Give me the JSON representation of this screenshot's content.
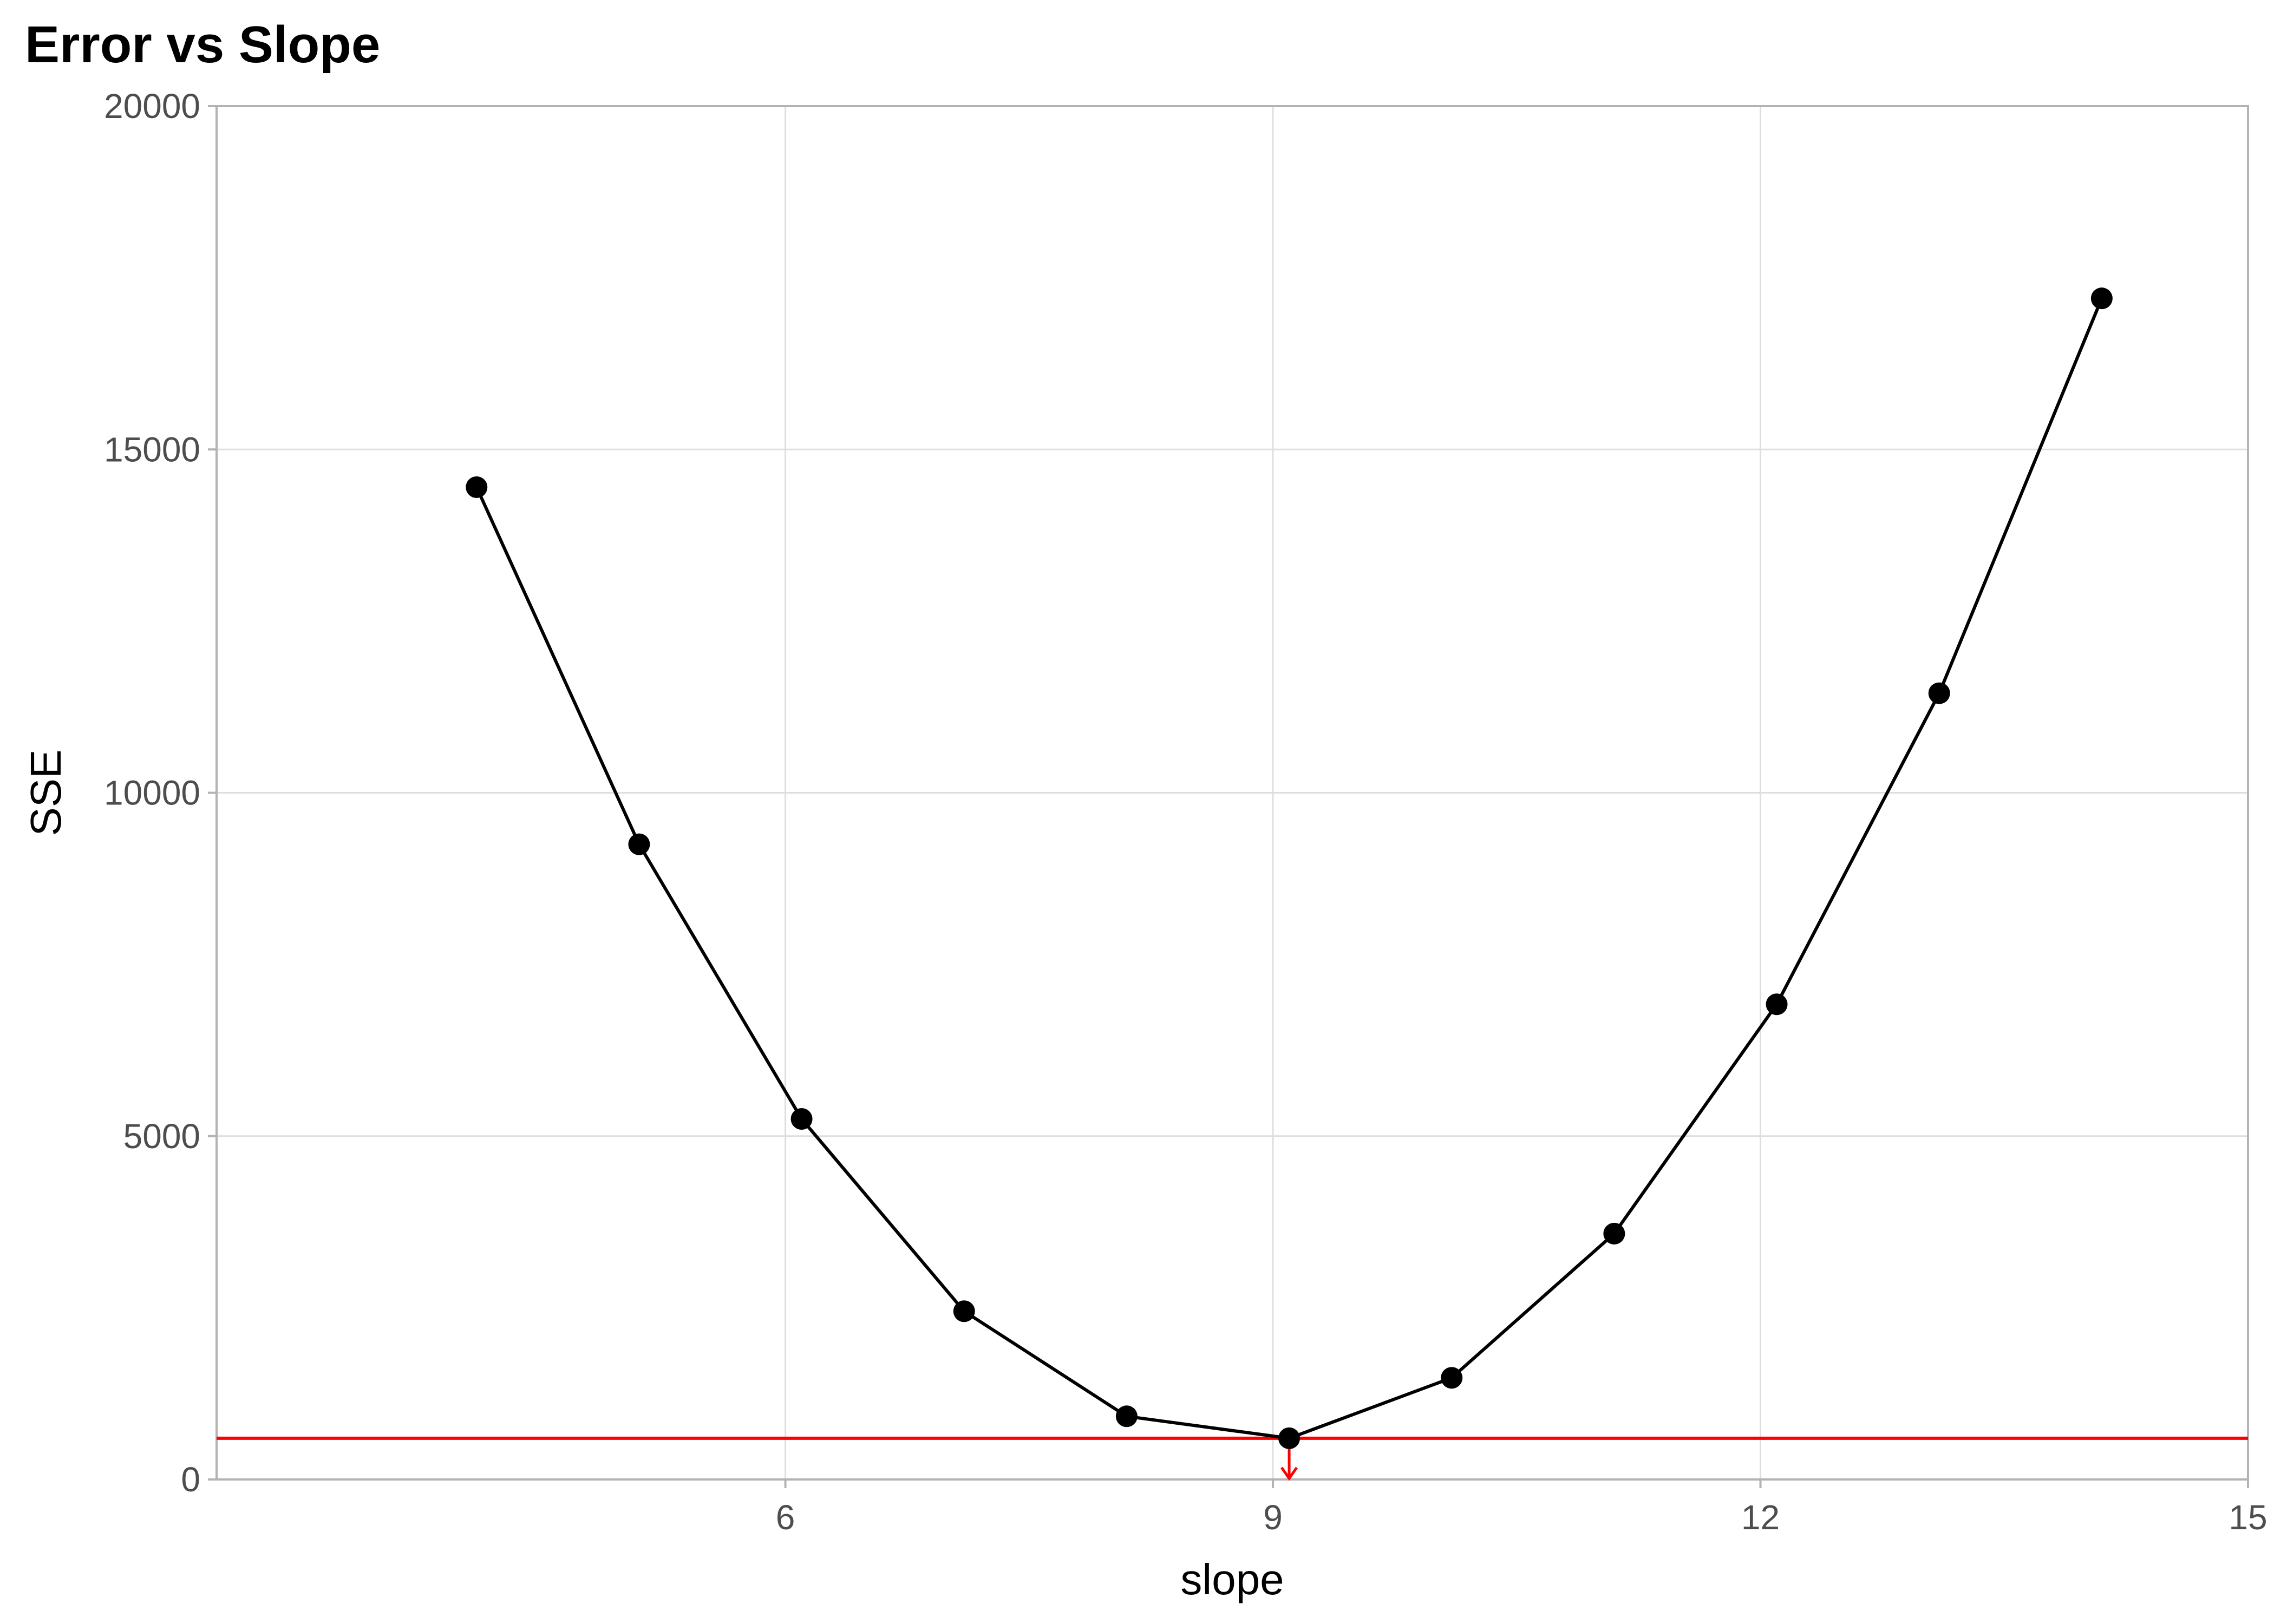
{
  "chart_data": {
    "type": "line",
    "title": "Error vs Slope",
    "xlabel": "slope",
    "ylabel": "SSE",
    "xlim": [
      2.5,
      15
    ],
    "ylim": [
      0,
      20000
    ],
    "x_ticks": [
      6,
      9,
      12,
      15
    ],
    "y_ticks": [
      0,
      5000,
      10000,
      15000,
      20000
    ],
    "x_tick_labels": [
      "6",
      "9",
      "12",
      "15"
    ],
    "y_tick_labels": [
      "0",
      "5000",
      "10000",
      "15000",
      "20000"
    ],
    "grid": true,
    "series": [
      {
        "x": [
          4.1,
          5.1,
          6.1,
          7.1,
          8.1,
          9.1,
          10.1,
          11.1,
          12.1,
          13.1,
          14.1
        ],
        "y": [
          14450,
          9250,
          5250,
          2450,
          920,
          600,
          1480,
          3580,
          6920,
          11450,
          17200
        ],
        "color": "#000000"
      }
    ],
    "annotations": {
      "min_hline": {
        "y": 600,
        "color": "#ff0000"
      },
      "min_arrow": {
        "x": 9.1,
        "y_from": 600,
        "y_to": 0,
        "color": "#ff0000"
      }
    }
  }
}
